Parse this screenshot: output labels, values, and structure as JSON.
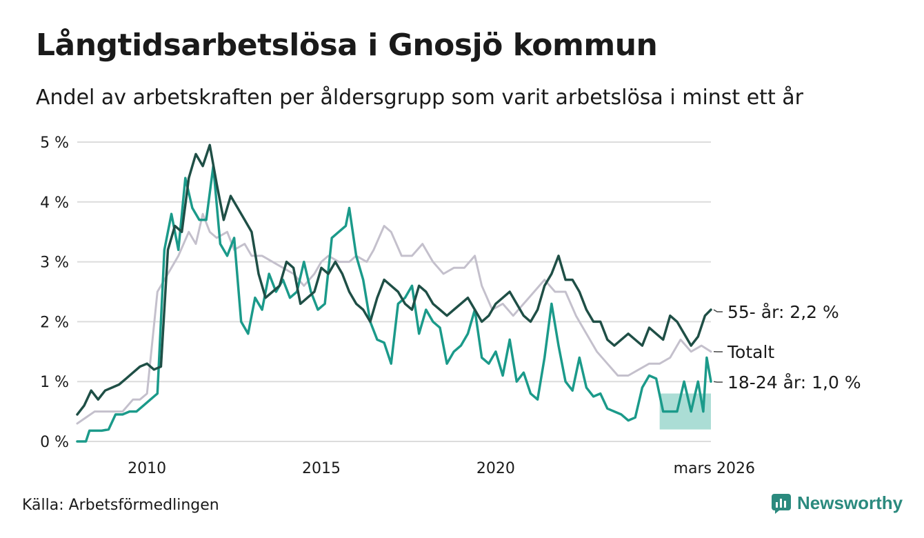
{
  "title": "Långtidsarbetslösa i Gnosjö kommun",
  "subtitle": "Andel av arbetskraften per åldersgrupp som varit arbetslösa i minst ett år",
  "source": "Källa: Arbetsförmedlingen",
  "brand": "Newsworthy",
  "colors": {
    "series_55": "#1f4f46",
    "series_total": "#c4c0cc",
    "series_young": "#1b9a8a",
    "band_young": "#8fd1c7",
    "grid": "#dcdcdc",
    "brand": "#2b8a7e"
  },
  "chart_data": {
    "type": "line",
    "title": "Långtidsarbetslösa i Gnosjö kommun",
    "ylim": [
      0,
      5
    ],
    "xlim": [
      2008.0,
      2026.17
    ],
    "yticks": [
      0,
      1,
      2,
      3,
      4,
      5
    ],
    "ytick_labels": [
      "0 %",
      "1 %",
      "2 %",
      "3 %",
      "4 %",
      "5 %"
    ],
    "xticks": [
      2010,
      2015,
      2020,
      2026.17
    ],
    "xtick_labels": [
      "2010",
      "2015",
      "2020",
      "mars 2026"
    ],
    "grid": true,
    "series": [
      {
        "name": "Totalt",
        "key": "total",
        "end_label": "Totalt",
        "points": [
          [
            2008.0,
            0.3
          ],
          [
            2008.5,
            0.5
          ],
          [
            2009.0,
            0.5
          ],
          [
            2009.3,
            0.5
          ],
          [
            2009.6,
            0.7
          ],
          [
            2009.8,
            0.7
          ],
          [
            2010.0,
            0.8
          ],
          [
            2010.3,
            2.5
          ],
          [
            2010.6,
            2.8
          ],
          [
            2010.9,
            3.1
          ],
          [
            2011.2,
            3.5
          ],
          [
            2011.4,
            3.3
          ],
          [
            2011.6,
            3.8
          ],
          [
            2011.8,
            3.5
          ],
          [
            2012.0,
            3.4
          ],
          [
            2012.3,
            3.5
          ],
          [
            2012.5,
            3.2
          ],
          [
            2012.8,
            3.3
          ],
          [
            2013.0,
            3.1
          ],
          [
            2013.3,
            3.1
          ],
          [
            2013.6,
            3.0
          ],
          [
            2013.9,
            2.9
          ],
          [
            2014.2,
            2.8
          ],
          [
            2014.5,
            2.6
          ],
          [
            2014.8,
            2.8
          ],
          [
            2015.0,
            3.0
          ],
          [
            2015.2,
            3.1
          ],
          [
            2015.5,
            3.0
          ],
          [
            2015.8,
            3.0
          ],
          [
            2016.0,
            3.1
          ],
          [
            2016.3,
            3.0
          ],
          [
            2016.5,
            3.2
          ],
          [
            2016.8,
            3.6
          ],
          [
            2017.0,
            3.5
          ],
          [
            2017.3,
            3.1
          ],
          [
            2017.6,
            3.1
          ],
          [
            2017.9,
            3.3
          ],
          [
            2018.2,
            3.0
          ],
          [
            2018.5,
            2.8
          ],
          [
            2018.8,
            2.9
          ],
          [
            2019.1,
            2.9
          ],
          [
            2019.4,
            3.1
          ],
          [
            2019.6,
            2.6
          ],
          [
            2019.9,
            2.2
          ],
          [
            2020.2,
            2.3
          ],
          [
            2020.5,
            2.1
          ],
          [
            2020.8,
            2.3
          ],
          [
            2021.1,
            2.5
          ],
          [
            2021.4,
            2.7
          ],
          [
            2021.7,
            2.5
          ],
          [
            2022.0,
            2.5
          ],
          [
            2022.3,
            2.1
          ],
          [
            2022.6,
            1.8
          ],
          [
            2022.9,
            1.5
          ],
          [
            2023.2,
            1.3
          ],
          [
            2023.5,
            1.1
          ],
          [
            2023.8,
            1.1
          ],
          [
            2024.1,
            1.2
          ],
          [
            2024.4,
            1.3
          ],
          [
            2024.7,
            1.3
          ],
          [
            2025.0,
            1.4
          ],
          [
            2025.3,
            1.7
          ],
          [
            2025.6,
            1.5
          ],
          [
            2025.9,
            1.6
          ],
          [
            2026.17,
            1.5
          ]
        ]
      },
      {
        "name": "55- år",
        "key": "age55",
        "end_label": "55- år: 2,2 %",
        "last_value": 2.2,
        "points": [
          [
            2008.0,
            0.45
          ],
          [
            2008.2,
            0.6
          ],
          [
            2008.4,
            0.85
          ],
          [
            2008.6,
            0.7
          ],
          [
            2008.8,
            0.85
          ],
          [
            2009.0,
            0.9
          ],
          [
            2009.2,
            0.95
          ],
          [
            2009.4,
            1.05
          ],
          [
            2009.6,
            1.15
          ],
          [
            2009.8,
            1.25
          ],
          [
            2010.0,
            1.3
          ],
          [
            2010.2,
            1.2
          ],
          [
            2010.4,
            1.25
          ],
          [
            2010.6,
            3.2
          ],
          [
            2010.8,
            3.6
          ],
          [
            2011.0,
            3.5
          ],
          [
            2011.2,
            4.4
          ],
          [
            2011.4,
            4.8
          ],
          [
            2011.6,
            4.6
          ],
          [
            2011.8,
            4.95
          ],
          [
            2012.0,
            4.3
          ],
          [
            2012.2,
            3.7
          ],
          [
            2012.4,
            4.1
          ],
          [
            2012.6,
            3.9
          ],
          [
            2012.8,
            3.7
          ],
          [
            2013.0,
            3.5
          ],
          [
            2013.2,
            2.8
          ],
          [
            2013.4,
            2.4
          ],
          [
            2013.6,
            2.5
          ],
          [
            2013.8,
            2.6
          ],
          [
            2014.0,
            3.0
          ],
          [
            2014.2,
            2.9
          ],
          [
            2014.4,
            2.3
          ],
          [
            2014.6,
            2.4
          ],
          [
            2014.8,
            2.5
          ],
          [
            2015.0,
            2.9
          ],
          [
            2015.2,
            2.8
          ],
          [
            2015.4,
            3.0
          ],
          [
            2015.6,
            2.8
          ],
          [
            2015.8,
            2.5
          ],
          [
            2016.0,
            2.3
          ],
          [
            2016.2,
            2.2
          ],
          [
            2016.4,
            2.0
          ],
          [
            2016.6,
            2.4
          ],
          [
            2016.8,
            2.7
          ],
          [
            2017.0,
            2.6
          ],
          [
            2017.2,
            2.5
          ],
          [
            2017.4,
            2.3
          ],
          [
            2017.6,
            2.2
          ],
          [
            2017.8,
            2.6
          ],
          [
            2018.0,
            2.5
          ],
          [
            2018.2,
            2.3
          ],
          [
            2018.4,
            2.2
          ],
          [
            2018.6,
            2.1
          ],
          [
            2018.8,
            2.2
          ],
          [
            2019.0,
            2.3
          ],
          [
            2019.2,
            2.4
          ],
          [
            2019.4,
            2.2
          ],
          [
            2019.6,
            2.0
          ],
          [
            2019.8,
            2.1
          ],
          [
            2020.0,
            2.3
          ],
          [
            2020.2,
            2.4
          ],
          [
            2020.4,
            2.5
          ],
          [
            2020.6,
            2.3
          ],
          [
            2020.8,
            2.1
          ],
          [
            2021.0,
            2.0
          ],
          [
            2021.2,
            2.2
          ],
          [
            2021.4,
            2.6
          ],
          [
            2021.6,
            2.8
          ],
          [
            2021.8,
            3.1
          ],
          [
            2022.0,
            2.7
          ],
          [
            2022.2,
            2.7
          ],
          [
            2022.4,
            2.5
          ],
          [
            2022.6,
            2.2
          ],
          [
            2022.8,
            2.0
          ],
          [
            2023.0,
            2.0
          ],
          [
            2023.2,
            1.7
          ],
          [
            2023.4,
            1.6
          ],
          [
            2023.6,
            1.7
          ],
          [
            2023.8,
            1.8
          ],
          [
            2024.0,
            1.7
          ],
          [
            2024.2,
            1.6
          ],
          [
            2024.4,
            1.9
          ],
          [
            2024.6,
            1.8
          ],
          [
            2024.8,
            1.7
          ],
          [
            2025.0,
            2.1
          ],
          [
            2025.2,
            2.0
          ],
          [
            2025.4,
            1.8
          ],
          [
            2025.6,
            1.6
          ],
          [
            2025.8,
            1.75
          ],
          [
            2026.0,
            2.1
          ],
          [
            2026.17,
            2.2
          ]
        ]
      },
      {
        "name": "18-24 år",
        "key": "age18",
        "end_label": "18-24 år: 1,0 %",
        "last_value": 1.0,
        "points": [
          [
            2008.0,
            0.0
          ],
          [
            2008.25,
            0.0
          ],
          [
            2008.35,
            0.18
          ],
          [
            2008.5,
            0.18
          ],
          [
            2008.7,
            0.18
          ],
          [
            2008.9,
            0.2
          ],
          [
            2009.1,
            0.45
          ],
          [
            2009.3,
            0.45
          ],
          [
            2009.5,
            0.5
          ],
          [
            2009.7,
            0.5
          ],
          [
            2009.9,
            0.6
          ],
          [
            2010.1,
            0.7
          ],
          [
            2010.3,
            0.8
          ],
          [
            2010.5,
            3.2
          ],
          [
            2010.7,
            3.8
          ],
          [
            2010.9,
            3.2
          ],
          [
            2011.1,
            4.4
          ],
          [
            2011.3,
            3.9
          ],
          [
            2011.5,
            3.7
          ],
          [
            2011.7,
            3.7
          ],
          [
            2011.9,
            4.6
          ],
          [
            2012.1,
            3.3
          ],
          [
            2012.3,
            3.1
          ],
          [
            2012.5,
            3.4
          ],
          [
            2012.7,
            2.0
          ],
          [
            2012.9,
            1.8
          ],
          [
            2013.1,
            2.4
          ],
          [
            2013.3,
            2.2
          ],
          [
            2013.5,
            2.8
          ],
          [
            2013.7,
            2.5
          ],
          [
            2013.9,
            2.7
          ],
          [
            2014.1,
            2.4
          ],
          [
            2014.3,
            2.5
          ],
          [
            2014.5,
            3.0
          ],
          [
            2014.7,
            2.5
          ],
          [
            2014.9,
            2.2
          ],
          [
            2015.1,
            2.3
          ],
          [
            2015.3,
            3.4
          ],
          [
            2015.5,
            3.5
          ],
          [
            2015.7,
            3.6
          ],
          [
            2015.8,
            3.9
          ],
          [
            2016.0,
            3.1
          ],
          [
            2016.2,
            2.7
          ],
          [
            2016.4,
            2.0
          ],
          [
            2016.6,
            1.7
          ],
          [
            2016.8,
            1.65
          ],
          [
            2017.0,
            1.3
          ],
          [
            2017.2,
            2.3
          ],
          [
            2017.4,
            2.4
          ],
          [
            2017.6,
            2.6
          ],
          [
            2017.8,
            1.8
          ],
          [
            2018.0,
            2.2
          ],
          [
            2018.2,
            2.0
          ],
          [
            2018.4,
            1.9
          ],
          [
            2018.6,
            1.3
          ],
          [
            2018.8,
            1.5
          ],
          [
            2019.0,
            1.6
          ],
          [
            2019.2,
            1.8
          ],
          [
            2019.4,
            2.2
          ],
          [
            2019.6,
            1.4
          ],
          [
            2019.8,
            1.3
          ],
          [
            2020.0,
            1.5
          ],
          [
            2020.2,
            1.1
          ],
          [
            2020.4,
            1.7
          ],
          [
            2020.6,
            1.0
          ],
          [
            2020.8,
            1.15
          ],
          [
            2021.0,
            0.8
          ],
          [
            2021.2,
            0.7
          ],
          [
            2021.4,
            1.4
          ],
          [
            2021.6,
            2.3
          ],
          [
            2021.8,
            1.6
          ],
          [
            2022.0,
            1.0
          ],
          [
            2022.2,
            0.85
          ],
          [
            2022.4,
            1.4
          ],
          [
            2022.6,
            0.9
          ],
          [
            2022.8,
            0.75
          ],
          [
            2023.0,
            0.8
          ],
          [
            2023.2,
            0.55
          ],
          [
            2023.4,
            0.5
          ],
          [
            2023.6,
            0.45
          ],
          [
            2023.8,
            0.35
          ],
          [
            2024.0,
            0.4
          ],
          [
            2024.2,
            0.9
          ],
          [
            2024.4,
            1.1
          ],
          [
            2024.6,
            1.05
          ],
          [
            2024.8,
            0.5
          ],
          [
            2025.0,
            0.5
          ],
          [
            2025.2,
            0.5
          ],
          [
            2025.4,
            1.0
          ],
          [
            2025.6,
            0.5
          ],
          [
            2025.8,
            1.0
          ],
          [
            2025.95,
            0.5
          ],
          [
            2026.05,
            1.4
          ],
          [
            2026.17,
            1.0
          ]
        ]
      }
    ],
    "band": {
      "series": "18-24 år",
      "points": [
        [
          2024.7,
          0.2,
          0.8
        ],
        [
          2025.05,
          0.2,
          0.8
        ],
        [
          2025.2,
          0.2,
          0.8
        ],
        [
          2025.3,
          0.2,
          0.8
        ],
        [
          2025.5,
          0.2,
          0.8
        ],
        [
          2025.6,
          0.2,
          0.8
        ],
        [
          2025.75,
          0.2,
          0.8
        ],
        [
          2025.9,
          0.2,
          0.8
        ],
        [
          2026.05,
          0.2,
          0.8
        ],
        [
          2026.17,
          0.2,
          0.8
        ]
      ]
    }
  }
}
